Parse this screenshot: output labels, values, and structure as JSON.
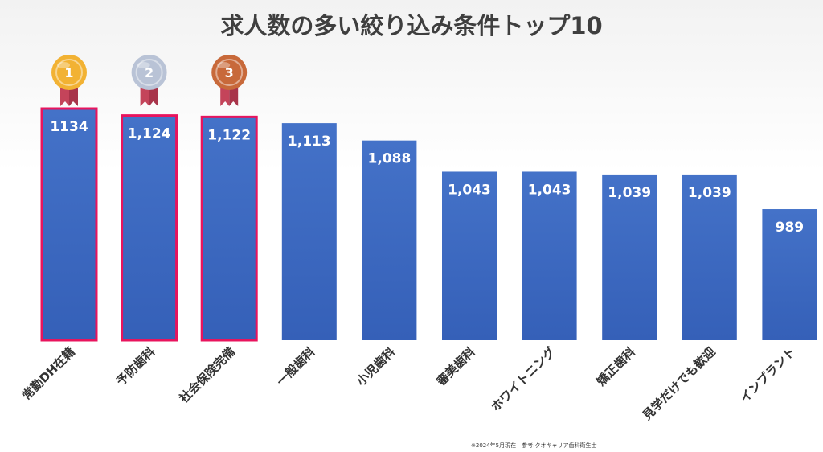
{
  "chart_data": {
    "type": "bar",
    "title": "求人数の多い絞り込み条件トップ10",
    "categories": [
      "常勤DH在籍",
      "予防歯科",
      "社会保険完備",
      "一般歯科",
      "小児歯科",
      "審美歯科",
      "ホワイトニング",
      "矯正歯科",
      "見学だけでも歓迎",
      "インプラント"
    ],
    "values": [
      1134,
      1124,
      1122,
      1113,
      1088,
      1043,
      1043,
      1039,
      1039,
      989
    ],
    "value_labels": [
      "1134",
      "1,124",
      "1,122",
      "1,113",
      "1,088",
      "1,043",
      "1,043",
      "1,039",
      "1,039",
      "989"
    ],
    "ylim": [
      800,
      1134
    ],
    "grid": false,
    "bar_color": "#3d67c0",
    "highlight_color": "#e8145d",
    "highlighted": [
      0,
      1,
      2
    ],
    "medals": [
      {
        "rank": "1",
        "color": "#f2b233"
      },
      {
        "rank": "2",
        "color": "#b9c3d6"
      },
      {
        "rank": "3",
        "color": "#c8693a"
      }
    ],
    "ribbon_color": "#c4445a",
    "footnote": "※2024年5月現在　参考:クオキャリア歯科衛生士"
  }
}
